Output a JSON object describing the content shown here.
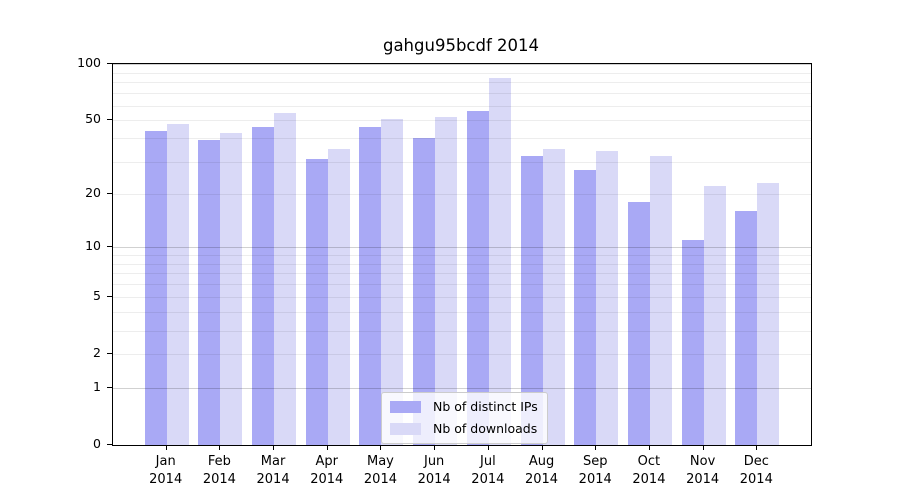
{
  "chart_data": {
    "type": "bar",
    "title": "gahgu95bcdf 2014",
    "scale": "log10(1+y)",
    "categories": [
      "Jan",
      "Feb",
      "Mar",
      "Apr",
      "May",
      "Jun",
      "Jul",
      "Aug",
      "Sep",
      "Oct",
      "Nov",
      "Dec"
    ],
    "x_year_label": "2014",
    "series": [
      {
        "name": "Nb of distinct IPs",
        "color": "#a9a9f5",
        "values": [
          44,
          39,
          46,
          31,
          46,
          40,
          56,
          32,
          27,
          18,
          11,
          16
        ]
      },
      {
        "name": "Nb of downloads",
        "color": "#d9d9f7",
        "values": [
          48,
          43,
          55,
          35,
          51,
          52,
          84,
          35,
          34,
          32,
          22,
          23
        ]
      }
    ],
    "yticks": [
      0,
      1,
      2,
      5,
      10,
      20,
      50,
      100
    ],
    "y_gridlines": [
      1,
      2,
      3,
      4,
      5,
      6,
      7,
      8,
      9,
      10,
      20,
      30,
      40,
      50,
      60,
      70,
      80,
      90,
      100
    ],
    "y_major_gridlines": [
      1,
      10,
      100
    ],
    "ylim": [
      0,
      100
    ],
    "xlabel": "",
    "ylabel": "",
    "grid": true,
    "legend_position": "bottom-center"
  }
}
